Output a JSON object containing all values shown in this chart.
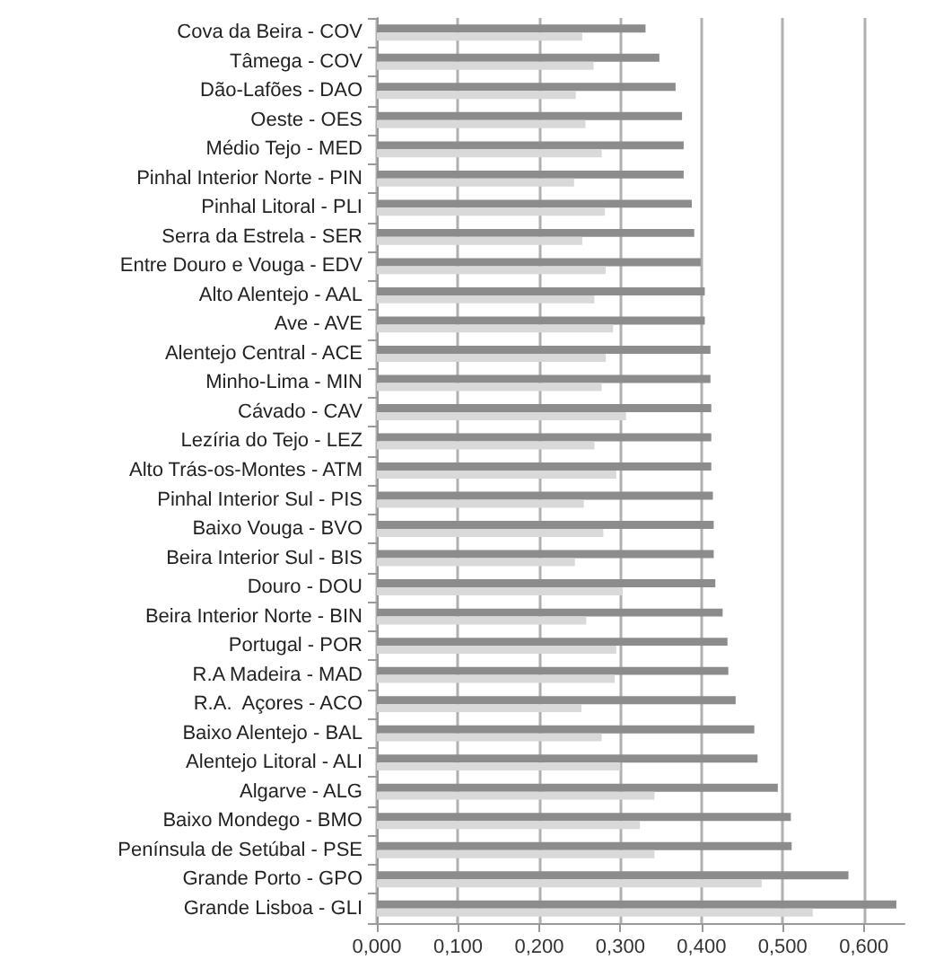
{
  "chart_data": {
    "type": "bar",
    "orientation": "horizontal",
    "categories": [
      "Cova da Beira - COV",
      "Tâmega - COV",
      "Dão-Lafões - DAO",
      "Oeste - OES",
      "Médio Tejo - MED",
      "Pinhal Interior Norte - PIN",
      "Pinhal Litoral - PLI",
      "Serra da Estrela - SER",
      "Entre Douro e Vouga - EDV",
      "Alto Alentejo - AAL",
      "Ave - AVE",
      "Alentejo Central - ACE",
      "Minho-Lima - MIN",
      "Cávado - CAV",
      "Lezíria do Tejo - LEZ",
      "Alto Trás-os-Montes - ATM",
      "Pinhal Interior Sul - PIS",
      "Baixo Vouga - BVO",
      "Beira Interior Sul - BIS",
      "Douro - DOU",
      "Beira Interior Norte - BIN",
      "Portugal - POR",
      "R.A Madeira - MAD",
      "R.A.  Açores - ACO",
      "Baixo Alentejo - BAL",
      "Alentejo Litoral - ALI",
      "Algarve - ALG",
      "Baixo Mondego - BMO",
      "Península de Setúbal - PSE",
      "Grande Porto - GPO",
      "Grande Lisboa - GLI"
    ],
    "series": [
      {
        "color": "#8c8c8c",
        "values": [
          0.331,
          0.348,
          0.368,
          0.376,
          0.378,
          0.378,
          0.388,
          0.391,
          0.399,
          0.404,
          0.404,
          0.411,
          0.411,
          0.412,
          0.412,
          0.412,
          0.414,
          0.415,
          0.415,
          0.417,
          0.426,
          0.432,
          0.433,
          0.442,
          0.465,
          0.469,
          0.494,
          0.51,
          0.511,
          0.581,
          0.64
        ]
      },
      {
        "color": "#d9d9d9",
        "values": [
          0.253,
          0.267,
          0.245,
          0.257,
          0.277,
          0.243,
          0.281,
          0.253,
          0.282,
          0.268,
          0.291,
          0.282,
          0.277,
          0.307,
          0.268,
          0.295,
          0.255,
          0.279,
          0.244,
          0.302,
          0.258,
          0.295,
          0.293,
          0.252,
          0.277,
          0.3,
          0.342,
          0.324,
          0.342,
          0.474,
          0.537
        ]
      }
    ],
    "xlim": [
      0,
      0.65
    ],
    "xticks": [
      {
        "value": 0,
        "label": "0,000"
      },
      {
        "value": 0.1,
        "label": "0,100"
      },
      {
        "value": 0.2,
        "label": "0,200"
      },
      {
        "value": 0.3,
        "label": "0,300"
      },
      {
        "value": 0.4,
        "label": "0,400"
      },
      {
        "value": 0.5,
        "label": "0,500"
      },
      {
        "value": 0.6,
        "label": "0,600"
      }
    ],
    "grid": "x"
  }
}
